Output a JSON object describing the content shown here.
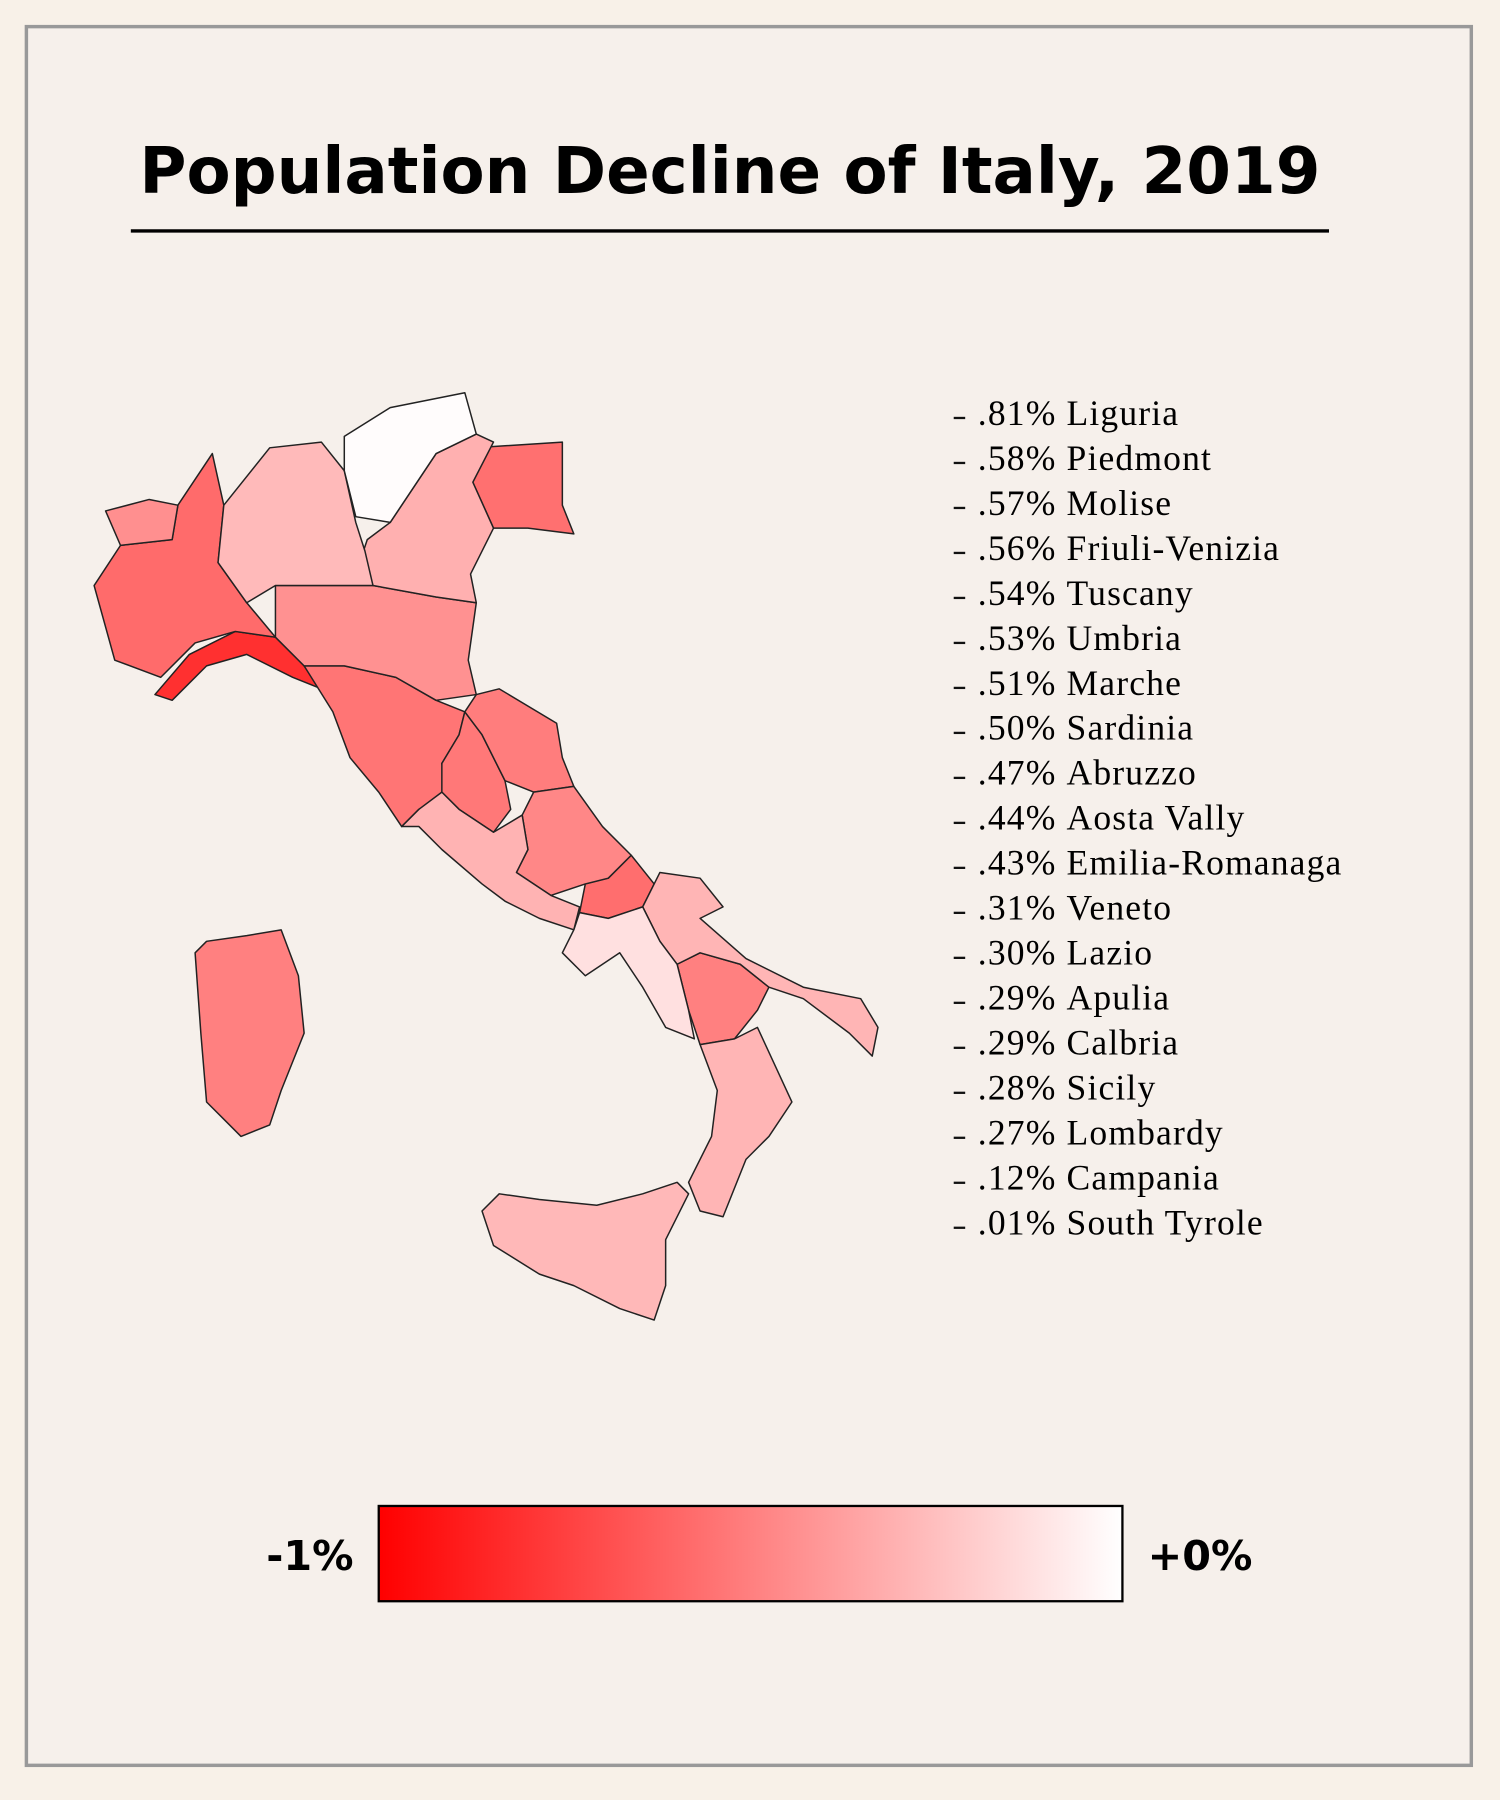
{
  "chart_data": {
    "type": "map",
    "title": "Population Decline of Italy, 2019",
    "regions": [
      {
        "name": "Liguria",
        "value": 0.81,
        "label": ".81%"
      },
      {
        "name": "Piedmont",
        "value": 0.58,
        "label": ".58%"
      },
      {
        "name": "Molise",
        "value": 0.57,
        "label": ".57%"
      },
      {
        "name": "Friuli-Venizia",
        "value": 0.56,
        "label": ".56%"
      },
      {
        "name": "Tuscany",
        "value": 0.54,
        "label": ".54%"
      },
      {
        "name": "Umbria",
        "value": 0.53,
        "label": ".53%"
      },
      {
        "name": "Marche",
        "value": 0.51,
        "label": ".51%"
      },
      {
        "name": "Sardinia",
        "value": 0.5,
        "label": ".50%"
      },
      {
        "name": "Abruzzo",
        "value": 0.47,
        "label": ".47%"
      },
      {
        "name": "Aosta Vally",
        "value": 0.44,
        "label": ".44%"
      },
      {
        "name": "Emilia-Romanaga",
        "value": 0.43,
        "label": ".43%"
      },
      {
        "name": "Veneto",
        "value": 0.31,
        "label": ".31%"
      },
      {
        "name": "Lazio",
        "value": 0.3,
        "label": ".30%"
      },
      {
        "name": "Apulia",
        "value": 0.29,
        "label": ".29%"
      },
      {
        "name": "Calbria",
        "value": 0.29,
        "label": ".29%"
      },
      {
        "name": "Sicily",
        "value": 0.28,
        "label": ".28%"
      },
      {
        "name": "Lombardy",
        "value": 0.27,
        "label": ".27%"
      },
      {
        "name": "Campania",
        "value": 0.12,
        "label": ".12%"
      },
      {
        "name": "South Tyrole",
        "value": 0.01,
        "label": ".01%"
      }
    ],
    "colorbar": {
      "colors": [
        "#ff0000",
        "#ffffff"
      ],
      "ticks": [
        {
          "value": -1,
          "label": "-1%"
        },
        {
          "value": 0,
          "label": "+0%"
        }
      ]
    }
  }
}
